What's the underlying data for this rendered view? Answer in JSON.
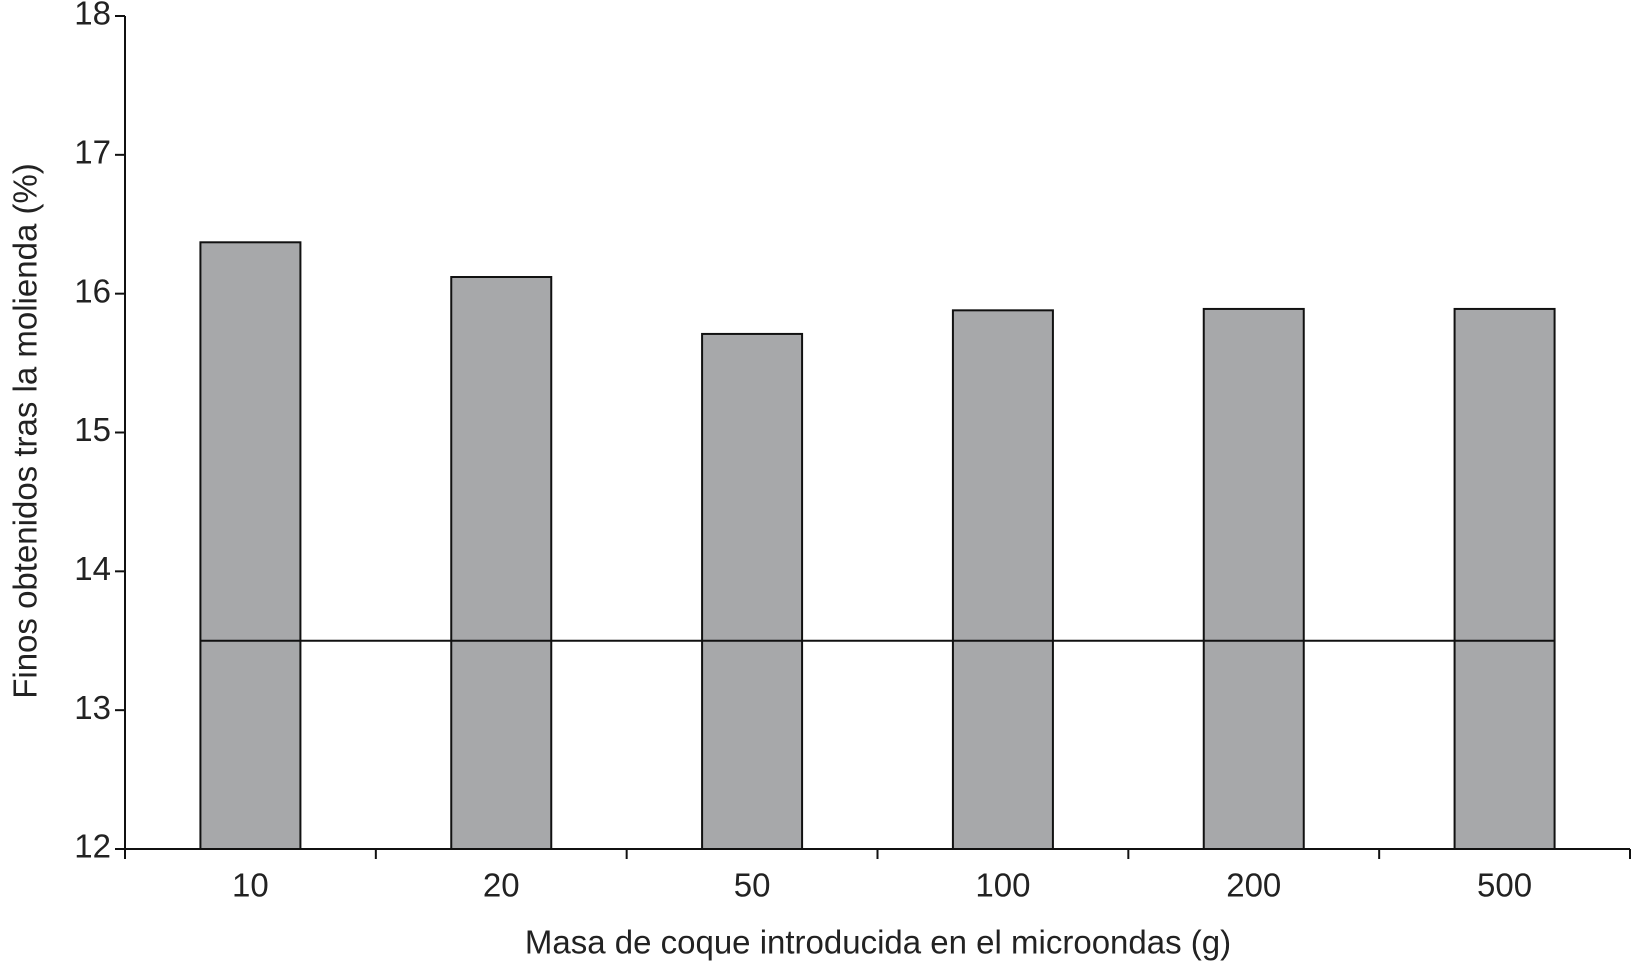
{
  "chart_data": {
    "type": "bar",
    "x_label": "Masa de coque introducida en el microondas (g)",
    "y_label": "Finos obtenidos tras la molienda (%)",
    "categories": [
      "10",
      "20",
      "50",
      "100",
      "200",
      "500"
    ],
    "values": [
      16.37,
      16.12,
      15.71,
      15.88,
      15.89,
      15.89
    ],
    "color": "#a7a8aa",
    "reference_line": 13.5,
    "ylim": [
      12,
      18
    ],
    "yticks": [
      12,
      13,
      14,
      15,
      16,
      17,
      18
    ],
    "grid": false
  }
}
